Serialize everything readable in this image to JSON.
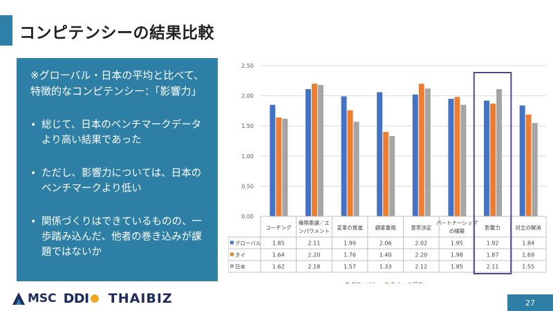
{
  "page": {
    "title": "コンピテンシーの結果比較",
    "page_number": "27"
  },
  "panel": {
    "heading": "※グローバル・日本の平均と比べて、特徴的なコンピテンシー：「影響力」",
    "bullets": [
      "総じて、日本のベンチマークデータより高い結果であった",
      "ただし、影響力については、日本のベンチマークより低い",
      "関係づくりはできているものの、一歩踏み込んだ、他者の巻き込みが課題ではないか"
    ],
    "bullet_glyph": "•"
  },
  "logos": {
    "msc": "MSC",
    "ddi": "DDI",
    "thaibiz": "THAIBIZ"
  },
  "chart_data": {
    "type": "bar",
    "categories": [
      [
        "コーチング"
      ],
      [
        "権限委譲／エ",
        "ンパワメント"
      ],
      [
        "変革の推進"
      ],
      [
        "顧客重視"
      ],
      [
        "意思決定"
      ],
      [
        "パートナーシップ",
        "の構築"
      ],
      [
        "影響力"
      ],
      [
        "対立の解消"
      ]
    ],
    "series": [
      {
        "name": "グローバル",
        "color": "#4472c4",
        "values": [
          1.85,
          2.11,
          1.99,
          2.06,
          2.02,
          1.95,
          1.92,
          1.84
        ]
      },
      {
        "name": "タイ",
        "color": "#ed7d31",
        "values": [
          1.64,
          2.2,
          1.76,
          1.4,
          2.2,
          1.98,
          1.87,
          1.69
        ]
      },
      {
        "name": "日本",
        "color": "#a5a5a5",
        "values": [
          1.62,
          2.18,
          1.57,
          1.33,
          2.12,
          1.85,
          2.11,
          1.55
        ]
      }
    ],
    "table_values": [
      [
        "1.85",
        "2.11",
        "1.99",
        "2.06",
        "2.02",
        "1.95",
        "1.92",
        "1.84"
      ],
      [
        "1.64",
        "2.20",
        "1.76",
        "1.40",
        "2.20",
        "1.98",
        "1.87",
        "1.69"
      ],
      [
        "1.62",
        "2.18",
        "1.57",
        "1.33",
        "2.12",
        "1.85",
        "2.11",
        "1.55"
      ]
    ],
    "y_ticks": [
      "0.00",
      "0.50",
      "1.00",
      "1.50",
      "2.00",
      "2.50"
    ],
    "ylim": [
      0,
      2.5
    ],
    "grid": true,
    "highlight_category_index": 6,
    "highlight_color": "#4a4a8c",
    "legend_position": "bottom"
  }
}
